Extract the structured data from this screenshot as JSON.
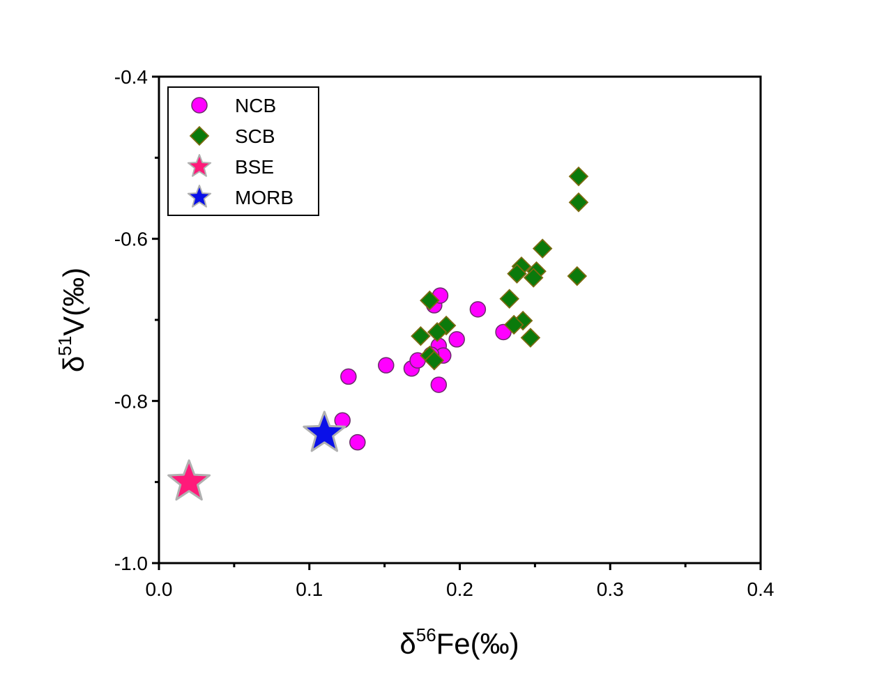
{
  "chart_data": {
    "type": "scatter",
    "x_axis": {
      "label_symbol": "δ",
      "label_sup": "56",
      "label_main": "Fe(‰)",
      "range": [
        0.0,
        0.4
      ],
      "ticks": [
        "0.0",
        "0.1",
        "0.2",
        "0.3",
        "0.4"
      ],
      "tick_values": [
        0.0,
        0.1,
        0.2,
        0.3,
        0.4
      ],
      "minor_tick_values": [
        0.05,
        0.15,
        0.25,
        0.35
      ]
    },
    "y_axis": {
      "label_symbol": "δ",
      "label_sup": "51",
      "label_main": "V(‰)",
      "range": [
        -1.0,
        -0.4
      ],
      "ticks": [
        "-1.0",
        "-0.8",
        "-0.6",
        "-0.4"
      ],
      "tick_values": [
        -1.0,
        -0.8,
        -0.6,
        -0.4
      ],
      "minor_tick_values": [
        -0.9,
        -0.7,
        -0.5
      ]
    },
    "grid": false,
    "legend_position": "top-left",
    "series": [
      {
        "name": "NCB",
        "marker": "circle",
        "color": "#ff00ff",
        "stroke": "#6a2a6a",
        "points": [
          [
            0.126,
            -0.77
          ],
          [
            0.151,
            -0.756
          ],
          [
            0.168,
            -0.76
          ],
          [
            0.172,
            -0.75
          ],
          [
            0.122,
            -0.824
          ],
          [
            0.132,
            -0.851
          ],
          [
            0.183,
            -0.682
          ],
          [
            0.187,
            -0.67
          ],
          [
            0.186,
            -0.732
          ],
          [
            0.189,
            -0.744
          ],
          [
            0.186,
            -0.78
          ],
          [
            0.198,
            -0.724
          ],
          [
            0.212,
            -0.687
          ],
          [
            0.229,
            -0.715
          ],
          [
            0.181,
            -0.743
          ]
        ]
      },
      {
        "name": "SCB",
        "marker": "diamond",
        "color": "#0b7a0b",
        "stroke": "#7a6a10",
        "points": [
          [
            0.279,
            -0.523
          ],
          [
            0.279,
            -0.555
          ],
          [
            0.255,
            -0.612
          ],
          [
            0.241,
            -0.634
          ],
          [
            0.238,
            -0.643
          ],
          [
            0.251,
            -0.64
          ],
          [
            0.249,
            -0.648
          ],
          [
            0.278,
            -0.646
          ],
          [
            0.233,
            -0.674
          ],
          [
            0.18,
            -0.676
          ],
          [
            0.191,
            -0.707
          ],
          [
            0.242,
            -0.701
          ],
          [
            0.236,
            -0.706
          ],
          [
            0.247,
            -0.722
          ],
          [
            0.174,
            -0.72
          ],
          [
            0.185,
            -0.715
          ],
          [
            0.18,
            -0.744
          ],
          [
            0.183,
            -0.75
          ]
        ]
      },
      {
        "name": "BSE",
        "marker": "star",
        "color": "#ff1a7a",
        "stroke": "#b0b0b0",
        "points": [
          [
            0.02,
            -0.9
          ]
        ]
      },
      {
        "name": "MORB",
        "marker": "star",
        "color": "#0a10e8",
        "stroke": "#b0b0b0",
        "points": [
          [
            0.11,
            -0.84
          ]
        ]
      }
    ]
  }
}
